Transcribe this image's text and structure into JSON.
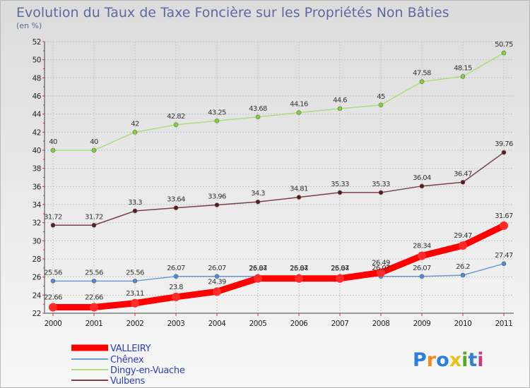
{
  "chart_data": {
    "type": "line",
    "title": "Evolution du Taux de Taxe Foncière sur les Propriétés Non Bâties",
    "ylabel": "(en %)",
    "xlabel": "",
    "x": [
      "2000",
      "2001",
      "2002",
      "2003",
      "2004",
      "2005",
      "2006",
      "2007",
      "2008",
      "2009",
      "2010",
      "2011"
    ],
    "ylim": [
      22,
      52
    ],
    "yticks": [
      22,
      24,
      26,
      28,
      30,
      32,
      34,
      36,
      38,
      40,
      42,
      44,
      46,
      48,
      50,
      52
    ],
    "grid": true,
    "legend_position": "bottom-left",
    "series": [
      {
        "name": "VALLEIRY",
        "color": "#ff0000",
        "marker_color": "#ff2a2a",
        "values": [
          22.66,
          22.66,
          23.11,
          23.8,
          24.39,
          25.84,
          25.84,
          25.84,
          26.49,
          28.34,
          29.47,
          31.67
        ],
        "labels": [
          "22.66",
          "22.66",
          "23.11",
          "23.8",
          "24.39",
          "25.84",
          "25.84",
          "25.84",
          "26.49",
          "28.34",
          "29.47",
          "31.67"
        ]
      },
      {
        "name": "Chênex",
        "color": "#6e9ad3",
        "marker_color": "#4f8ad4",
        "values": [
          25.56,
          25.56,
          25.56,
          26.07,
          26.07,
          26.07,
          26.07,
          26.07,
          26.07,
          26.07,
          26.2,
          27.47
        ],
        "labels": [
          "25.56",
          "25.56",
          "25.56",
          "26.07",
          "26.07",
          "26.07",
          "26.07",
          "26.07",
          "26.07",
          "26.07",
          "26.2",
          "27.47"
        ]
      },
      {
        "name": "Dingy-en-Vuache",
        "color": "#a8df7a",
        "marker_color": "#7ed33c",
        "values": [
          40,
          40,
          42,
          42.82,
          43.25,
          43.68,
          44.16,
          44.6,
          45,
          47.58,
          48.15,
          50.75
        ],
        "labels": [
          "40",
          "40",
          "42",
          "42.82",
          "43.25",
          "43.68",
          "44.16",
          "44.6",
          "45",
          "47.58",
          "48.15",
          "50.75"
        ]
      },
      {
        "name": "Vulbens",
        "color": "#7a4246",
        "marker_color": "#5a1a1e",
        "values": [
          31.72,
          31.72,
          33.3,
          33.64,
          33.96,
          34.3,
          34.81,
          35.33,
          35.33,
          36.04,
          36.47,
          39.76
        ],
        "labels": [
          "31.72",
          "31.72",
          "33.3",
          "33.64",
          "33.96",
          "34.3",
          "34.81",
          "35.33",
          "35.33",
          "36.04",
          "36.47",
          "39.76"
        ]
      }
    ]
  },
  "logo": {
    "text": "Proxiti"
  }
}
